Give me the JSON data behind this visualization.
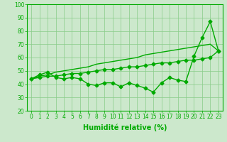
{
  "x": [
    0,
    1,
    2,
    3,
    4,
    5,
    6,
    7,
    8,
    9,
    10,
    11,
    12,
    13,
    14,
    15,
    16,
    17,
    18,
    19,
    20,
    21,
    22,
    23
  ],
  "line_jagged": [
    44,
    47,
    49,
    45,
    44,
    45,
    44,
    40,
    39,
    41,
    41,
    38,
    41,
    39,
    37,
    34,
    41,
    45,
    43,
    42,
    61,
    75,
    87,
    65
  ],
  "line_mid": [
    44,
    45,
    46,
    46,
    47,
    48,
    48,
    49,
    50,
    51,
    51,
    52,
    53,
    53,
    54,
    55,
    56,
    56,
    57,
    58,
    58,
    59,
    60,
    65
  ],
  "line_top": [
    44,
    46,
    47,
    49,
    50,
    51,
    52,
    53,
    55,
    56,
    57,
    58,
    59,
    60,
    62,
    63,
    64,
    65,
    66,
    67,
    68,
    69,
    70,
    65
  ],
  "xlabel": "Humidité relative (%)",
  "ylim": [
    20,
    100
  ],
  "xlim_min": -0.5,
  "xlim_max": 23.5,
  "yticks": [
    20,
    30,
    40,
    50,
    60,
    70,
    80,
    90,
    100
  ],
  "line_color": "#00aa00",
  "bg_color": "#cce8cc",
  "grid_color": "#88cc88",
  "marker": "D",
  "marker_size": 2.5,
  "linewidth": 1.0,
  "xlabel_fontsize": 7,
  "tick_fontsize": 5.5
}
